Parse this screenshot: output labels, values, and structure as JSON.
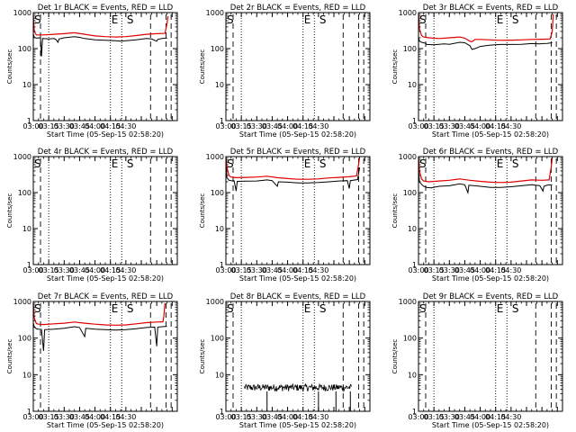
{
  "chart_data": [
    {
      "type": "line",
      "title": "Det 1r BLACK = Events, RED = LLD",
      "xlabel": "Start Time (05-Sep-15 02:58:20)",
      "ylabel": "Counts/sec",
      "has_data": true,
      "events": [
        [
          0,
          260
        ],
        [
          1,
          205
        ],
        [
          3,
          195
        ],
        [
          5,
          200
        ],
        [
          6,
          198
        ],
        [
          7,
          199
        ],
        [
          8,
          60
        ],
        [
          9,
          190
        ],
        [
          15,
          185
        ],
        [
          20,
          190
        ],
        [
          22,
          180
        ],
        [
          24,
          150
        ],
        [
          25,
          185
        ],
        [
          30,
          200
        ],
        [
          40,
          215
        ],
        [
          45,
          205
        ],
        [
          50,
          190
        ],
        [
          60,
          175
        ],
        [
          70,
          170
        ],
        [
          80,
          165
        ],
        [
          85,
          160
        ],
        [
          90,
          165
        ],
        [
          100,
          175
        ],
        [
          110,
          190
        ],
        [
          115,
          185
        ],
        [
          120,
          160
        ],
        [
          121,
          180
        ],
        [
          125,
          190
        ],
        [
          130,
          195
        ]
      ],
      "lld": [
        [
          0,
          800
        ],
        [
          1,
          300
        ],
        [
          3,
          240
        ],
        [
          5,
          240
        ],
        [
          10,
          240
        ],
        [
          20,
          250
        ],
        [
          30,
          260
        ],
        [
          40,
          275
        ],
        [
          50,
          250
        ],
        [
          60,
          225
        ],
        [
          70,
          215
        ],
        [
          80,
          210
        ],
        [
          90,
          215
        ],
        [
          100,
          230
        ],
        [
          110,
          250
        ],
        [
          120,
          260
        ],
        [
          128,
          265
        ],
        [
          130,
          500
        ],
        [
          131,
          800
        ]
      ]
    },
    {
      "type": "line",
      "title": "Det 2r BLACK = Events, RED = LLD",
      "xlabel": "Start Time (05-Sep-15 02:58:20)",
      "ylabel": "Counts/sec",
      "has_data": false
    },
    {
      "type": "line",
      "title": "Det 3r BLACK = Events, RED = LLD",
      "xlabel": "Start Time (05-Sep-15 02:58:20)",
      "ylabel": "Counts/sec",
      "has_data": true,
      "events": [
        [
          0,
          220
        ],
        [
          1,
          160
        ],
        [
          3,
          150
        ],
        [
          5,
          145
        ],
        [
          7,
          140
        ],
        [
          8,
          130
        ],
        [
          15,
          128
        ],
        [
          25,
          135
        ],
        [
          30,
          132
        ],
        [
          40,
          150
        ],
        [
          45,
          145
        ],
        [
          50,
          120
        ],
        [
          52,
          95
        ],
        [
          55,
          100
        ],
        [
          60,
          115
        ],
        [
          70,
          125
        ],
        [
          80,
          130
        ],
        [
          90,
          130
        ],
        [
          100,
          132
        ],
        [
          110,
          138
        ],
        [
          118,
          135
        ],
        [
          121,
          138
        ],
        [
          125,
          140
        ],
        [
          130,
          145
        ]
      ],
      "lld": [
        [
          0,
          900
        ],
        [
          1,
          350
        ],
        [
          3,
          230
        ],
        [
          5,
          210
        ],
        [
          10,
          200
        ],
        [
          20,
          190
        ],
        [
          30,
          200
        ],
        [
          40,
          210
        ],
        [
          45,
          195
        ],
        [
          50,
          160
        ],
        [
          52,
          155
        ],
        [
          55,
          180
        ],
        [
          60,
          180
        ],
        [
          70,
          175
        ],
        [
          80,
          170
        ],
        [
          90,
          172
        ],
        [
          100,
          175
        ],
        [
          110,
          180
        ],
        [
          120,
          182
        ],
        [
          128,
          185
        ],
        [
          130,
          300
        ],
        [
          131,
          900
        ]
      ]
    },
    {
      "type": "line",
      "title": "Det 4r BLACK = Events, RED = LLD",
      "xlabel": "Start Time (05-Sep-15 02:58:20)",
      "ylabel": "Counts/sec",
      "has_data": false
    },
    {
      "type": "line",
      "title": "Det 5r BLACK = Events, RED = LLD",
      "xlabel": "Start Time (05-Sep-15 02:58:20)",
      "ylabel": "Counts/sec",
      "has_data": true,
      "events": [
        [
          0,
          900
        ],
        [
          1,
          260
        ],
        [
          3,
          220
        ],
        [
          5,
          215
        ],
        [
          8,
          212
        ],
        [
          10,
          110
        ],
        [
          11,
          205
        ],
        [
          20,
          208
        ],
        [
          30,
          210
        ],
        [
          40,
          225
        ],
        [
          45,
          215
        ],
        [
          50,
          150
        ],
        [
          51,
          200
        ],
        [
          60,
          195
        ],
        [
          70,
          185
        ],
        [
          80,
          185
        ],
        [
          90,
          190
        ],
        [
          100,
          200
        ],
        [
          110,
          210
        ],
        [
          118,
          215
        ],
        [
          120,
          130
        ],
        [
          121,
          215
        ],
        [
          128,
          230
        ],
        [
          130,
          500
        ]
      ],
      "lld": [
        [
          0,
          1000
        ],
        [
          1,
          500
        ],
        [
          3,
          300
        ],
        [
          5,
          270
        ],
        [
          10,
          260
        ],
        [
          20,
          265
        ],
        [
          30,
          270
        ],
        [
          40,
          285
        ],
        [
          50,
          260
        ],
        [
          60,
          245
        ],
        [
          70,
          235
        ],
        [
          80,
          235
        ],
        [
          90,
          240
        ],
        [
          100,
          255
        ],
        [
          110,
          265
        ],
        [
          120,
          275
        ],
        [
          127,
          290
        ],
        [
          129,
          600
        ],
        [
          130,
          1000
        ]
      ]
    },
    {
      "type": "line",
      "title": "Det 6r BLACK = Events, RED = LLD",
      "xlabel": "Start Time (05-Sep-15 02:58:20)",
      "ylabel": "Counts/sec",
      "has_data": true,
      "events": [
        [
          0,
          450
        ],
        [
          1,
          200
        ],
        [
          3,
          170
        ],
        [
          5,
          150
        ],
        [
          8,
          140
        ],
        [
          12,
          135
        ],
        [
          20,
          150
        ],
        [
          30,
          155
        ],
        [
          40,
          175
        ],
        [
          45,
          165
        ],
        [
          48,
          100
        ],
        [
          49,
          160
        ],
        [
          60,
          150
        ],
        [
          70,
          140
        ],
        [
          80,
          140
        ],
        [
          90,
          145
        ],
        [
          100,
          155
        ],
        [
          110,
          165
        ],
        [
          118,
          155
        ],
        [
          121,
          110
        ],
        [
          122,
          150
        ],
        [
          125,
          160
        ],
        [
          130,
          165
        ]
      ],
      "lld": [
        [
          0,
          950
        ],
        [
          1,
          400
        ],
        [
          3,
          240
        ],
        [
          5,
          210
        ],
        [
          10,
          200
        ],
        [
          20,
          210
        ],
        [
          30,
          220
        ],
        [
          40,
          240
        ],
        [
          50,
          220
        ],
        [
          60,
          205
        ],
        [
          70,
          195
        ],
        [
          80,
          190
        ],
        [
          90,
          195
        ],
        [
          100,
          210
        ],
        [
          110,
          225
        ],
        [
          120,
          220
        ],
        [
          127,
          225
        ],
        [
          129,
          500
        ],
        [
          130,
          950
        ]
      ]
    },
    {
      "type": "line",
      "title": "Det 7r BLACK = Events, RED = LLD",
      "xlabel": "Start Time (05-Sep-15 02:58:20)",
      "ylabel": "Counts/sec",
      "has_data": true,
      "events": [
        [
          0,
          260
        ],
        [
          1,
          200
        ],
        [
          3,
          180
        ],
        [
          5,
          175
        ],
        [
          8,
          172
        ],
        [
          10,
          45
        ],
        [
          11,
          170
        ],
        [
          20,
          175
        ],
        [
          30,
          185
        ],
        [
          40,
          205
        ],
        [
          45,
          195
        ],
        [
          50,
          110
        ],
        [
          51,
          185
        ],
        [
          60,
          175
        ],
        [
          70,
          170
        ],
        [
          80,
          165
        ],
        [
          90,
          170
        ],
        [
          100,
          180
        ],
        [
          110,
          195
        ],
        [
          118,
          200
        ],
        [
          120,
          60
        ],
        [
          121,
          200
        ],
        [
          125,
          205
        ],
        [
          130,
          210
        ]
      ],
      "lld": [
        [
          0,
          900
        ],
        [
          1,
          350
        ],
        [
          3,
          250
        ],
        [
          5,
          240
        ],
        [
          10,
          235
        ],
        [
          20,
          245
        ],
        [
          30,
          255
        ],
        [
          40,
          275
        ],
        [
          50,
          255
        ],
        [
          60,
          240
        ],
        [
          70,
          230
        ],
        [
          80,
          225
        ],
        [
          90,
          230
        ],
        [
          100,
          245
        ],
        [
          110,
          265
        ],
        [
          120,
          275
        ],
        [
          126,
          280
        ],
        [
          127,
          400
        ],
        [
          128,
          900
        ]
      ]
    },
    {
      "type": "line",
      "title": "Det 8r BLACK = Events, RED = LLD",
      "xlabel": "Start Time (05-Sep-15 02:58:20)",
      "ylabel": "Counts/sec",
      "has_data": true,
      "events_noise": {
        "start": 18,
        "end": 122,
        "min": 3.5,
        "max": 5.5,
        "dropouts": [
          40,
          90,
          107,
          121
        ]
      }
    },
    {
      "type": "line",
      "title": "Det 9r BLACK = Events, RED = LLD",
      "xlabel": "Start Time (05-Sep-15 02:58:20)",
      "ylabel": "Counts/sec",
      "has_data": false
    }
  ],
  "axes": {
    "x_range": [
      0,
      140
    ],
    "x_tick_values": [
      0,
      15,
      30,
      45,
      60,
      75,
      90,
      105,
      120,
      135
    ],
    "x_tick_labels": [
      "03:00",
      "03:15",
      "03:30",
      "03:45",
      "04:00",
      "04:15",
      "04:30"
    ],
    "x_tick_label_values": [
      0,
      15,
      30,
      45,
      60,
      75,
      90
    ],
    "y_range": [
      1,
      1000
    ],
    "y_tick_values": [
      1,
      10,
      100,
      1000
    ],
    "y_tick_labels": [
      "1",
      "10",
      "100",
      "1000"
    ],
    "y_scale": "log"
  },
  "markers": {
    "dashed_values": [
      7,
      114,
      129,
      134
    ],
    "dotted_values": [
      15,
      75,
      86
    ],
    "s_value": 0,
    "e_value": 75,
    "s_right_value": 90,
    "s_label": "S",
    "e_label": "E"
  },
  "colors": {
    "events": "#000000",
    "lld": "#e00000",
    "axis": "#000000",
    "background": "#ffffff"
  }
}
